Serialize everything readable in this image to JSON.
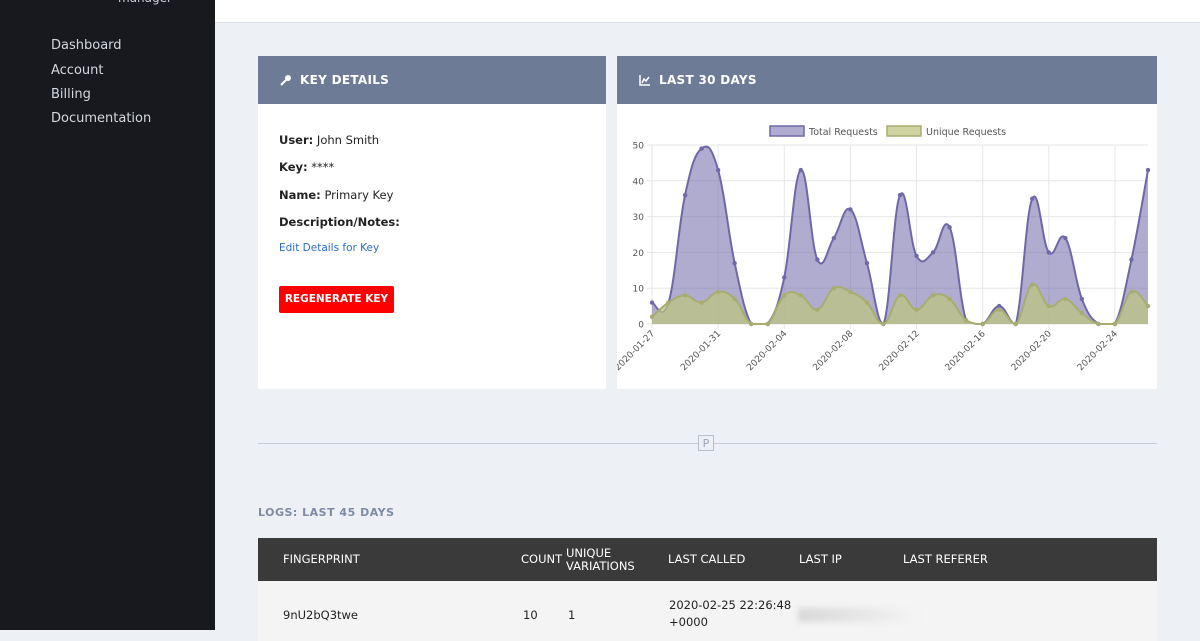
{
  "sidebar": {
    "brand": "manager",
    "nav": [
      "Dashboard",
      "Account",
      "Billing",
      "Documentation"
    ]
  },
  "key_details": {
    "title": "KEY DETAILS",
    "fields": [
      {
        "label": "User:",
        "value": "John Smith"
      },
      {
        "label": "Key:",
        "value": "****"
      },
      {
        "label": "Name:",
        "value": "Primary Key"
      },
      {
        "label": "Description/Notes:"
      }
    ],
    "edit_link": "Edit Details for Key",
    "button": "REGENERATE KEY"
  },
  "chart_panel_title": "LAST 30 DAYS",
  "chart_data": {
    "type": "area",
    "categories": [
      "2020-01-27",
      null,
      null,
      null,
      "2020-01-31",
      null,
      null,
      null,
      "2020-02-04",
      null,
      null,
      null,
      "2020-02-08",
      null,
      null,
      null,
      "2020-02-12",
      null,
      null,
      null,
      "2020-02-16",
      null,
      null,
      null,
      "2020-02-20",
      null,
      null,
      null,
      "2020-02-24",
      null,
      null
    ],
    "series": [
      {
        "name": "Total Requests",
        "color": "#6f68a8",
        "values": [
          6,
          6,
          36,
          49,
          43,
          17,
          0,
          0,
          13,
          43,
          18,
          24,
          32,
          17,
          0,
          36,
          19,
          20,
          27,
          1,
          0,
          5,
          0,
          35,
          20,
          24,
          7,
          0,
          0,
          18,
          43
        ]
      },
      {
        "name": "Unique Requests",
        "color": "#a8ad6f",
        "values": [
          2,
          6,
          8,
          6,
          9,
          7,
          0,
          0,
          8,
          8,
          4,
          10,
          9,
          6,
          0,
          8,
          4,
          8,
          7,
          1,
          0,
          4,
          0,
          11,
          5,
          7,
          3,
          0,
          0,
          9,
          5
        ]
      }
    ],
    "ylim": [
      0,
      50
    ],
    "yticks": [
      0,
      10,
      20,
      30,
      40,
      50
    ],
    "grid": true,
    "legend": "top"
  },
  "logs": {
    "title": "LOGS: LAST 45 DAYS",
    "columns": [
      "FINGERPRINT",
      "COUNT",
      "UNIQUE VARIATIONS",
      "LAST CALLED",
      "LAST IP",
      "LAST REFERER"
    ],
    "rows": [
      {
        "fingerprint": "9nU2bQ3twe",
        "count": 10,
        "unique_variations": 1,
        "last_called": "2020-02-25 22:26:48 +0000"
      }
    ]
  }
}
